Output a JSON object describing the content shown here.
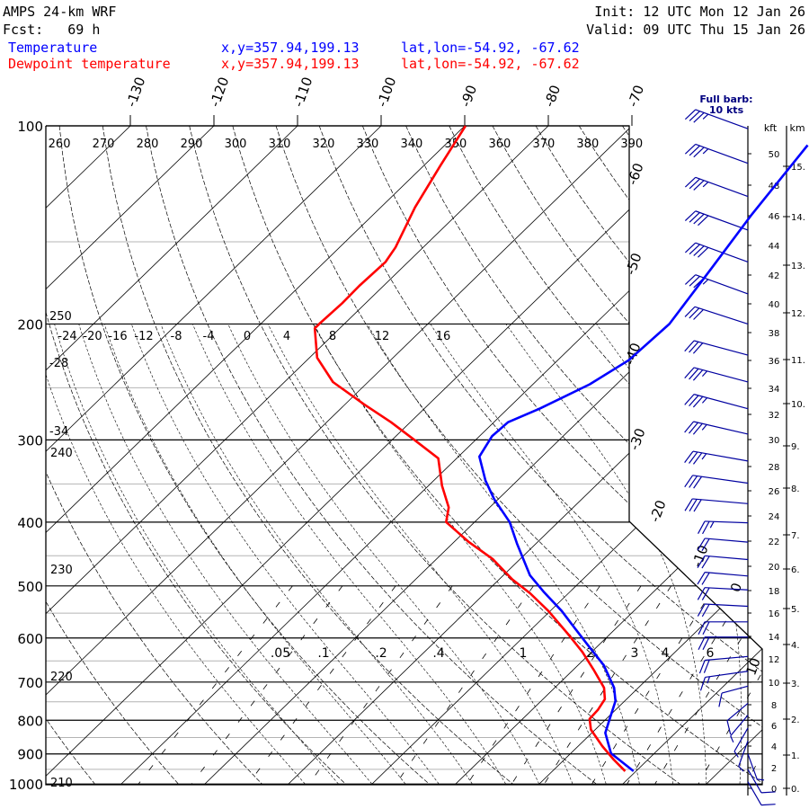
{
  "header": {
    "model": "AMPS 24-km WRF",
    "forecast": "Fcst:   69 h",
    "init": "Init: 12 UTC Mon 12 Jan 26",
    "valid": "Valid: 09 UTC Thu 15 Jan 26"
  },
  "legend": [
    {
      "name": "Temperature",
      "xy": "x,y=357.94,199.13",
      "latlon": "lat,lon=-54.92, -67.62",
      "color": "#0000ff"
    },
    {
      "name": "Dewpoint temperature",
      "xy": "x,y=357.94,199.13",
      "latlon": "lat,lon=-54.92, -67.62",
      "color": "#ff0000"
    }
  ],
  "barb_note": {
    "line1": "Full barb:",
    "line2": "10 kts"
  },
  "axis_units": {
    "kft": "kft",
    "km": "km"
  },
  "chart_data": {
    "type": "line",
    "diagram": "skew-T log-p",
    "ylabel": "Pressure (hPa)",
    "pressure_ticks": [
      100,
      200,
      300,
      400,
      500,
      600,
      700,
      800,
      900,
      1000
    ],
    "pressure_minor": [
      150,
      250,
      350,
      450,
      550,
      650,
      750,
      850,
      950
    ],
    "ylim": [
      1000,
      100
    ],
    "isotherm_top_labels": [
      -130,
      -120,
      -110,
      -100,
      -90,
      -80,
      -70
    ],
    "isotherm_side_labels": [
      -60,
      -50,
      -40,
      -30,
      -20,
      -10,
      0,
      10
    ],
    "dry_adiabat_labels": [
      260,
      270,
      280,
      290,
      300,
      310,
      320,
      330,
      340,
      350,
      360,
      370,
      380,
      390
    ],
    "moist_adiabat_labels": [
      -24,
      -20,
      -16,
      -12,
      -8,
      -4,
      0,
      4,
      8,
      12,
      16
    ],
    "mixing_ratio_labels": [
      ".05",
      ".1",
      ".2",
      ".4",
      "1",
      "2",
      "3",
      "4",
      "6"
    ],
    "left_labels": [
      "250",
      "-28",
      "-34",
      "240",
      "230",
      "220",
      "210"
    ],
    "series": [
      {
        "name": "Temperature",
        "color": "#0000ff",
        "points_p_T": [
          [
            956,
            9.7
          ],
          [
            898,
            4.8
          ],
          [
            836,
            1.6
          ],
          [
            796,
            0.4
          ],
          [
            748,
            -1.1
          ],
          [
            714,
            -2.9
          ],
          [
            660,
            -6.9
          ],
          [
            616,
            -11.2
          ],
          [
            582,
            -14.7
          ],
          [
            546,
            -18.6
          ],
          [
            510,
            -23.2
          ],
          [
            482,
            -26.8
          ],
          [
            431,
            -32.3
          ],
          [
            400,
            -35.8
          ],
          [
            369,
            -40.5
          ],
          [
            346,
            -43.8
          ],
          [
            318,
            -47.5
          ],
          [
            296,
            -48.5
          ],
          [
            282,
            -48.3
          ],
          [
            269,
            -46.2
          ],
          [
            247,
            -43.2
          ],
          [
            227,
            -41.5
          ],
          [
            200,
            -41.1
          ],
          [
            165,
            -42.9
          ],
          [
            137,
            -44.7
          ],
          [
            107,
            -46.6
          ]
        ]
      },
      {
        "name": "Dewpoint temperature",
        "color": "#ff0000",
        "points_p_T": [
          [
            956,
            8.7
          ],
          [
            918,
            5.9
          ],
          [
            876,
            2.9
          ],
          [
            827,
            -0.5
          ],
          [
            796,
            -2.0
          ],
          [
            772,
            -2.1
          ],
          [
            743,
            -2.6
          ],
          [
            714,
            -4.1
          ],
          [
            670,
            -7.6
          ],
          [
            630,
            -11.1
          ],
          [
            591,
            -15.1
          ],
          [
            546,
            -20.2
          ],
          [
            513,
            -24.6
          ],
          [
            489,
            -28.4
          ],
          [
            455,
            -33.3
          ],
          [
            429,
            -38.2
          ],
          [
            400,
            -43.4
          ],
          [
            380,
            -44.9
          ],
          [
            352,
            -48.4
          ],
          [
            320,
            -52.2
          ],
          [
            299,
            -57.6
          ],
          [
            282,
            -62.3
          ],
          [
            265,
            -67.7
          ],
          [
            245,
            -74.2
          ],
          [
            225,
            -79.1
          ],
          [
            203,
            -83.0
          ],
          [
            200,
            -83.0
          ],
          [
            186,
            -82.8
          ],
          [
            175,
            -82.9
          ],
          [
            161,
            -82.7
          ],
          [
            153,
            -83.3
          ],
          [
            133,
            -85.9
          ],
          [
            115,
            -88.0
          ],
          [
            100,
            -89.9
          ]
        ]
      }
    ],
    "winds": [
      {
        "p": 101,
        "dir": 290,
        "kt": 35
      },
      {
        "p": 114,
        "dir": 290,
        "kt": 35
      },
      {
        "p": 128,
        "dir": 290,
        "kt": 35
      },
      {
        "p": 144,
        "dir": 290,
        "kt": 40
      },
      {
        "p": 161,
        "dir": 290,
        "kt": 40
      },
      {
        "p": 180,
        "dir": 290,
        "kt": 35
      },
      {
        "p": 200,
        "dir": 288,
        "kt": 30
      },
      {
        "p": 223,
        "dir": 285,
        "kt": 30
      },
      {
        "p": 245,
        "dir": 285,
        "kt": 35
      },
      {
        "p": 269,
        "dir": 285,
        "kt": 35
      },
      {
        "p": 294,
        "dir": 283,
        "kt": 35
      },
      {
        "p": 323,
        "dir": 280,
        "kt": 35
      },
      {
        "p": 349,
        "dir": 278,
        "kt": 30
      },
      {
        "p": 375,
        "dir": 275,
        "kt": 30
      },
      {
        "p": 401,
        "dir": 272,
        "kt": 25
      },
      {
        "p": 429,
        "dir": 275,
        "kt": 20
      },
      {
        "p": 456,
        "dir": 275,
        "kt": 20
      },
      {
        "p": 483,
        "dir": 275,
        "kt": 20
      },
      {
        "p": 507,
        "dir": 273,
        "kt": 20
      },
      {
        "p": 537,
        "dir": 273,
        "kt": 20
      },
      {
        "p": 567,
        "dir": 270,
        "kt": 20
      },
      {
        "p": 598,
        "dir": 270,
        "kt": 20
      },
      {
        "p": 640,
        "dir": 265,
        "kt": 20
      },
      {
        "p": 674,
        "dir": 262,
        "kt": 15
      },
      {
        "p": 710,
        "dir": 255,
        "kt": 10
      },
      {
        "p": 754,
        "dir": 230,
        "kt": 10
      },
      {
        "p": 786,
        "dir": 220,
        "kt": 5
      },
      {
        "p": 822,
        "dir": 210,
        "kt": 5
      },
      {
        "p": 860,
        "dir": 200,
        "kt": 5
      },
      {
        "p": 900,
        "dir": 160,
        "kt": 5
      },
      {
        "p": 950,
        "dir": 150,
        "kt": 10
      },
      {
        "p": 992,
        "dir": 150,
        "kt": 10
      }
    ],
    "kft_ticks": [
      0,
      2,
      4,
      6,
      8,
      10,
      12,
      14,
      16,
      18,
      20,
      22,
      24,
      26,
      28,
      30,
      32,
      34,
      36,
      38,
      40,
      42,
      44,
      46,
      48,
      50
    ],
    "km_ticks": [
      "0.",
      "1.",
      "2.",
      "3.",
      "4.",
      "5.",
      "6.",
      "7.",
      "8.",
      "9.",
      "10.",
      "11.",
      "12.",
      "13.",
      "14.",
      "15."
    ]
  }
}
